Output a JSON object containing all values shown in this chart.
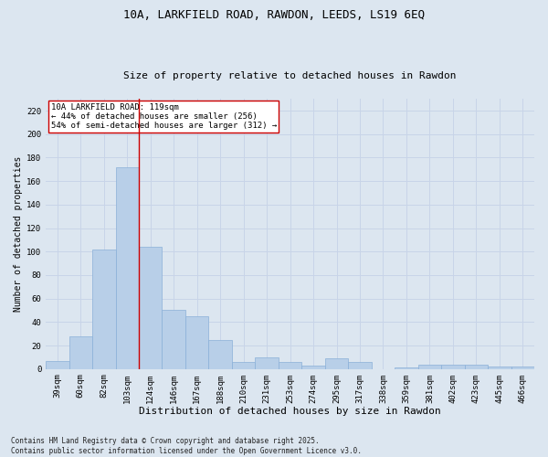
{
  "title1": "10A, LARKFIELD ROAD, RAWDON, LEEDS, LS19 6EQ",
  "title2": "Size of property relative to detached houses in Rawdon",
  "xlabel": "Distribution of detached houses by size in Rawdon",
  "ylabel": "Number of detached properties",
  "categories": [
    "39sqm",
    "60sqm",
    "82sqm",
    "103sqm",
    "124sqm",
    "146sqm",
    "167sqm",
    "188sqm",
    "210sqm",
    "231sqm",
    "253sqm",
    "274sqm",
    "295sqm",
    "317sqm",
    "338sqm",
    "359sqm",
    "381sqm",
    "402sqm",
    "423sqm",
    "445sqm",
    "466sqm"
  ],
  "values": [
    7,
    28,
    102,
    172,
    104,
    50,
    45,
    25,
    6,
    10,
    6,
    3,
    9,
    6,
    0,
    1,
    4,
    4,
    4,
    2,
    2
  ],
  "bar_color": "#b8cfe8",
  "bar_edge_color": "#8ab0d8",
  "grid_color": "#c8d4e8",
  "background_color": "#dce6f0",
  "vline_x_index": 3.5,
  "vline_color": "#cc0000",
  "annotation_text": "10A LARKFIELD ROAD: 119sqm\n← 44% of detached houses are smaller (256)\n54% of semi-detached houses are larger (312) →",
  "annotation_box_color": "#ffffff",
  "annotation_box_edge_color": "#cc0000",
  "footer": "Contains HM Land Registry data © Crown copyright and database right 2025.\nContains public sector information licensed under the Open Government Licence v3.0.",
  "ylim": [
    0,
    230
  ],
  "yticks": [
    0,
    20,
    40,
    60,
    80,
    100,
    120,
    140,
    160,
    180,
    200,
    220
  ],
  "title1_fontsize": 9,
  "title2_fontsize": 8,
  "xlabel_fontsize": 8,
  "ylabel_fontsize": 7,
  "tick_fontsize": 6.5,
  "annot_fontsize": 6.5,
  "footer_fontsize": 5.5
}
